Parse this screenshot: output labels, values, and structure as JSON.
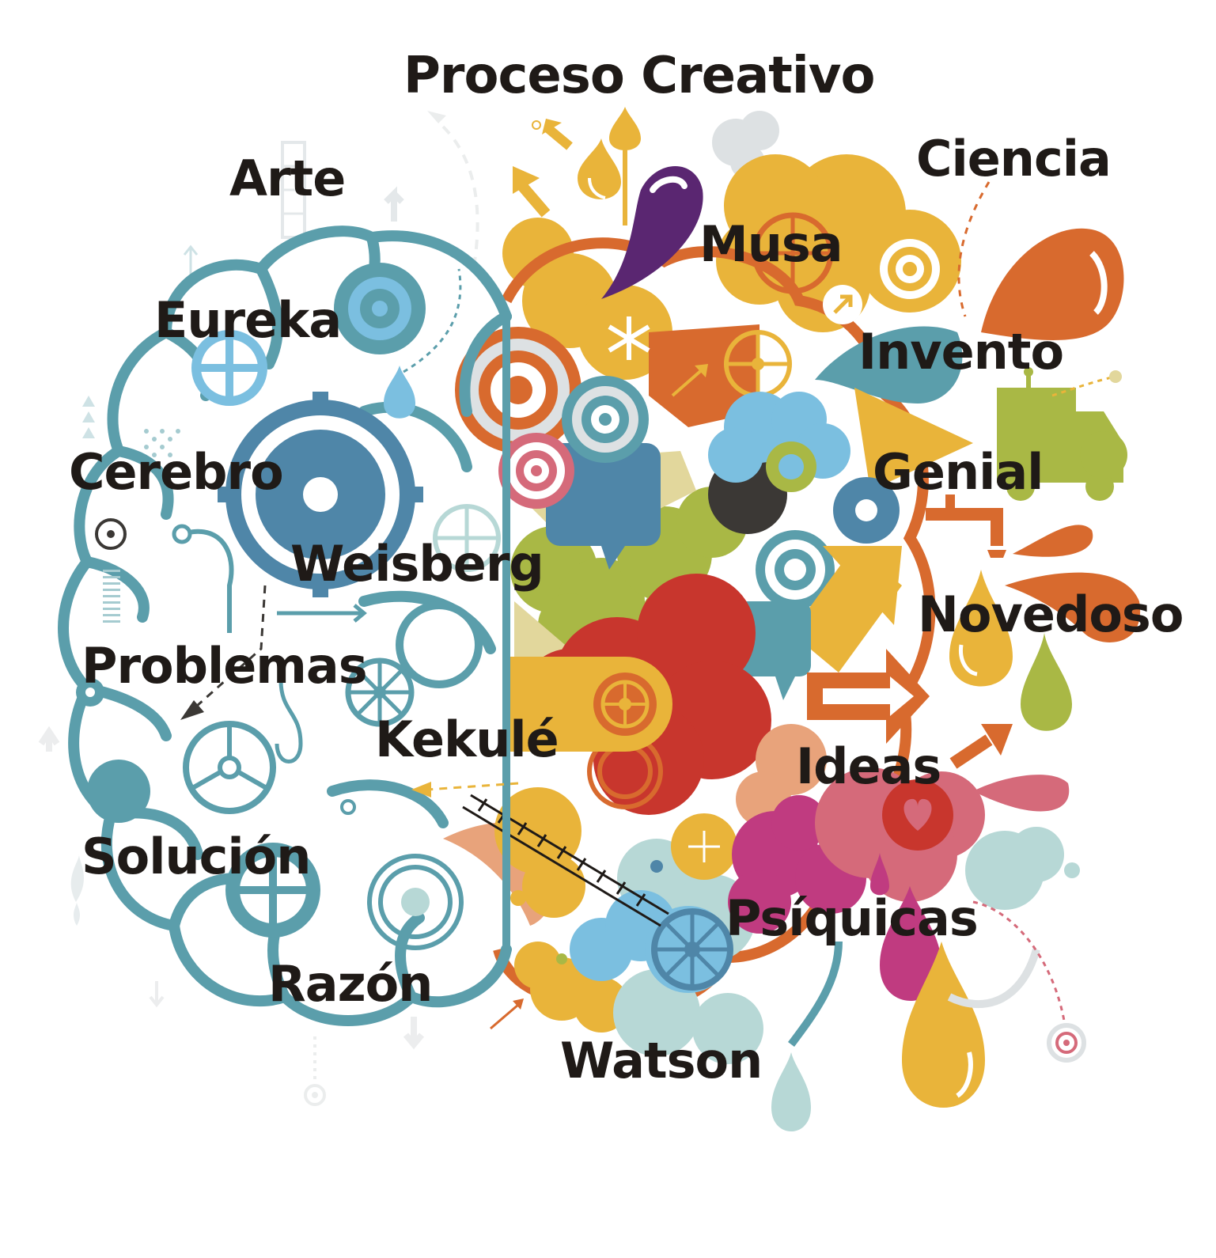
{
  "title": "Proceso Creativo",
  "words": [
    {
      "id": "arte",
      "text": "Arte"
    },
    {
      "id": "ciencia",
      "text": "Ciencia"
    },
    {
      "id": "musa",
      "text": "Musa"
    },
    {
      "id": "eureka",
      "text": "Eureka"
    },
    {
      "id": "invento",
      "text": "Invento"
    },
    {
      "id": "cerebro",
      "text": "Cerebro"
    },
    {
      "id": "genial",
      "text": "Genial"
    },
    {
      "id": "weisberg",
      "text": "Weisberg"
    },
    {
      "id": "novedoso",
      "text": "Novedoso"
    },
    {
      "id": "problemas",
      "text": "Problemas"
    },
    {
      "id": "kekule",
      "text": "Kekulé"
    },
    {
      "id": "ideas",
      "text": "Ideas"
    },
    {
      "id": "solucion",
      "text": "Solución"
    },
    {
      "id": "psiquicas",
      "text": "Psíquicas"
    },
    {
      "id": "razon",
      "text": "Razón"
    },
    {
      "id": "watson",
      "text": "Watson"
    }
  ],
  "colors": {
    "brain_left_teal": "#5b9eab",
    "gear_blue": "#4f86a8",
    "orange": "#d86a2e",
    "yellow": "#e9b43a",
    "red": "#c8362d",
    "olive": "#a9b845",
    "purple": "#5a2671",
    "magenta": "#c03b80",
    "pink": "#d56a7a",
    "light_blue": "#7bbfe0",
    "text": "#1f1a17"
  }
}
